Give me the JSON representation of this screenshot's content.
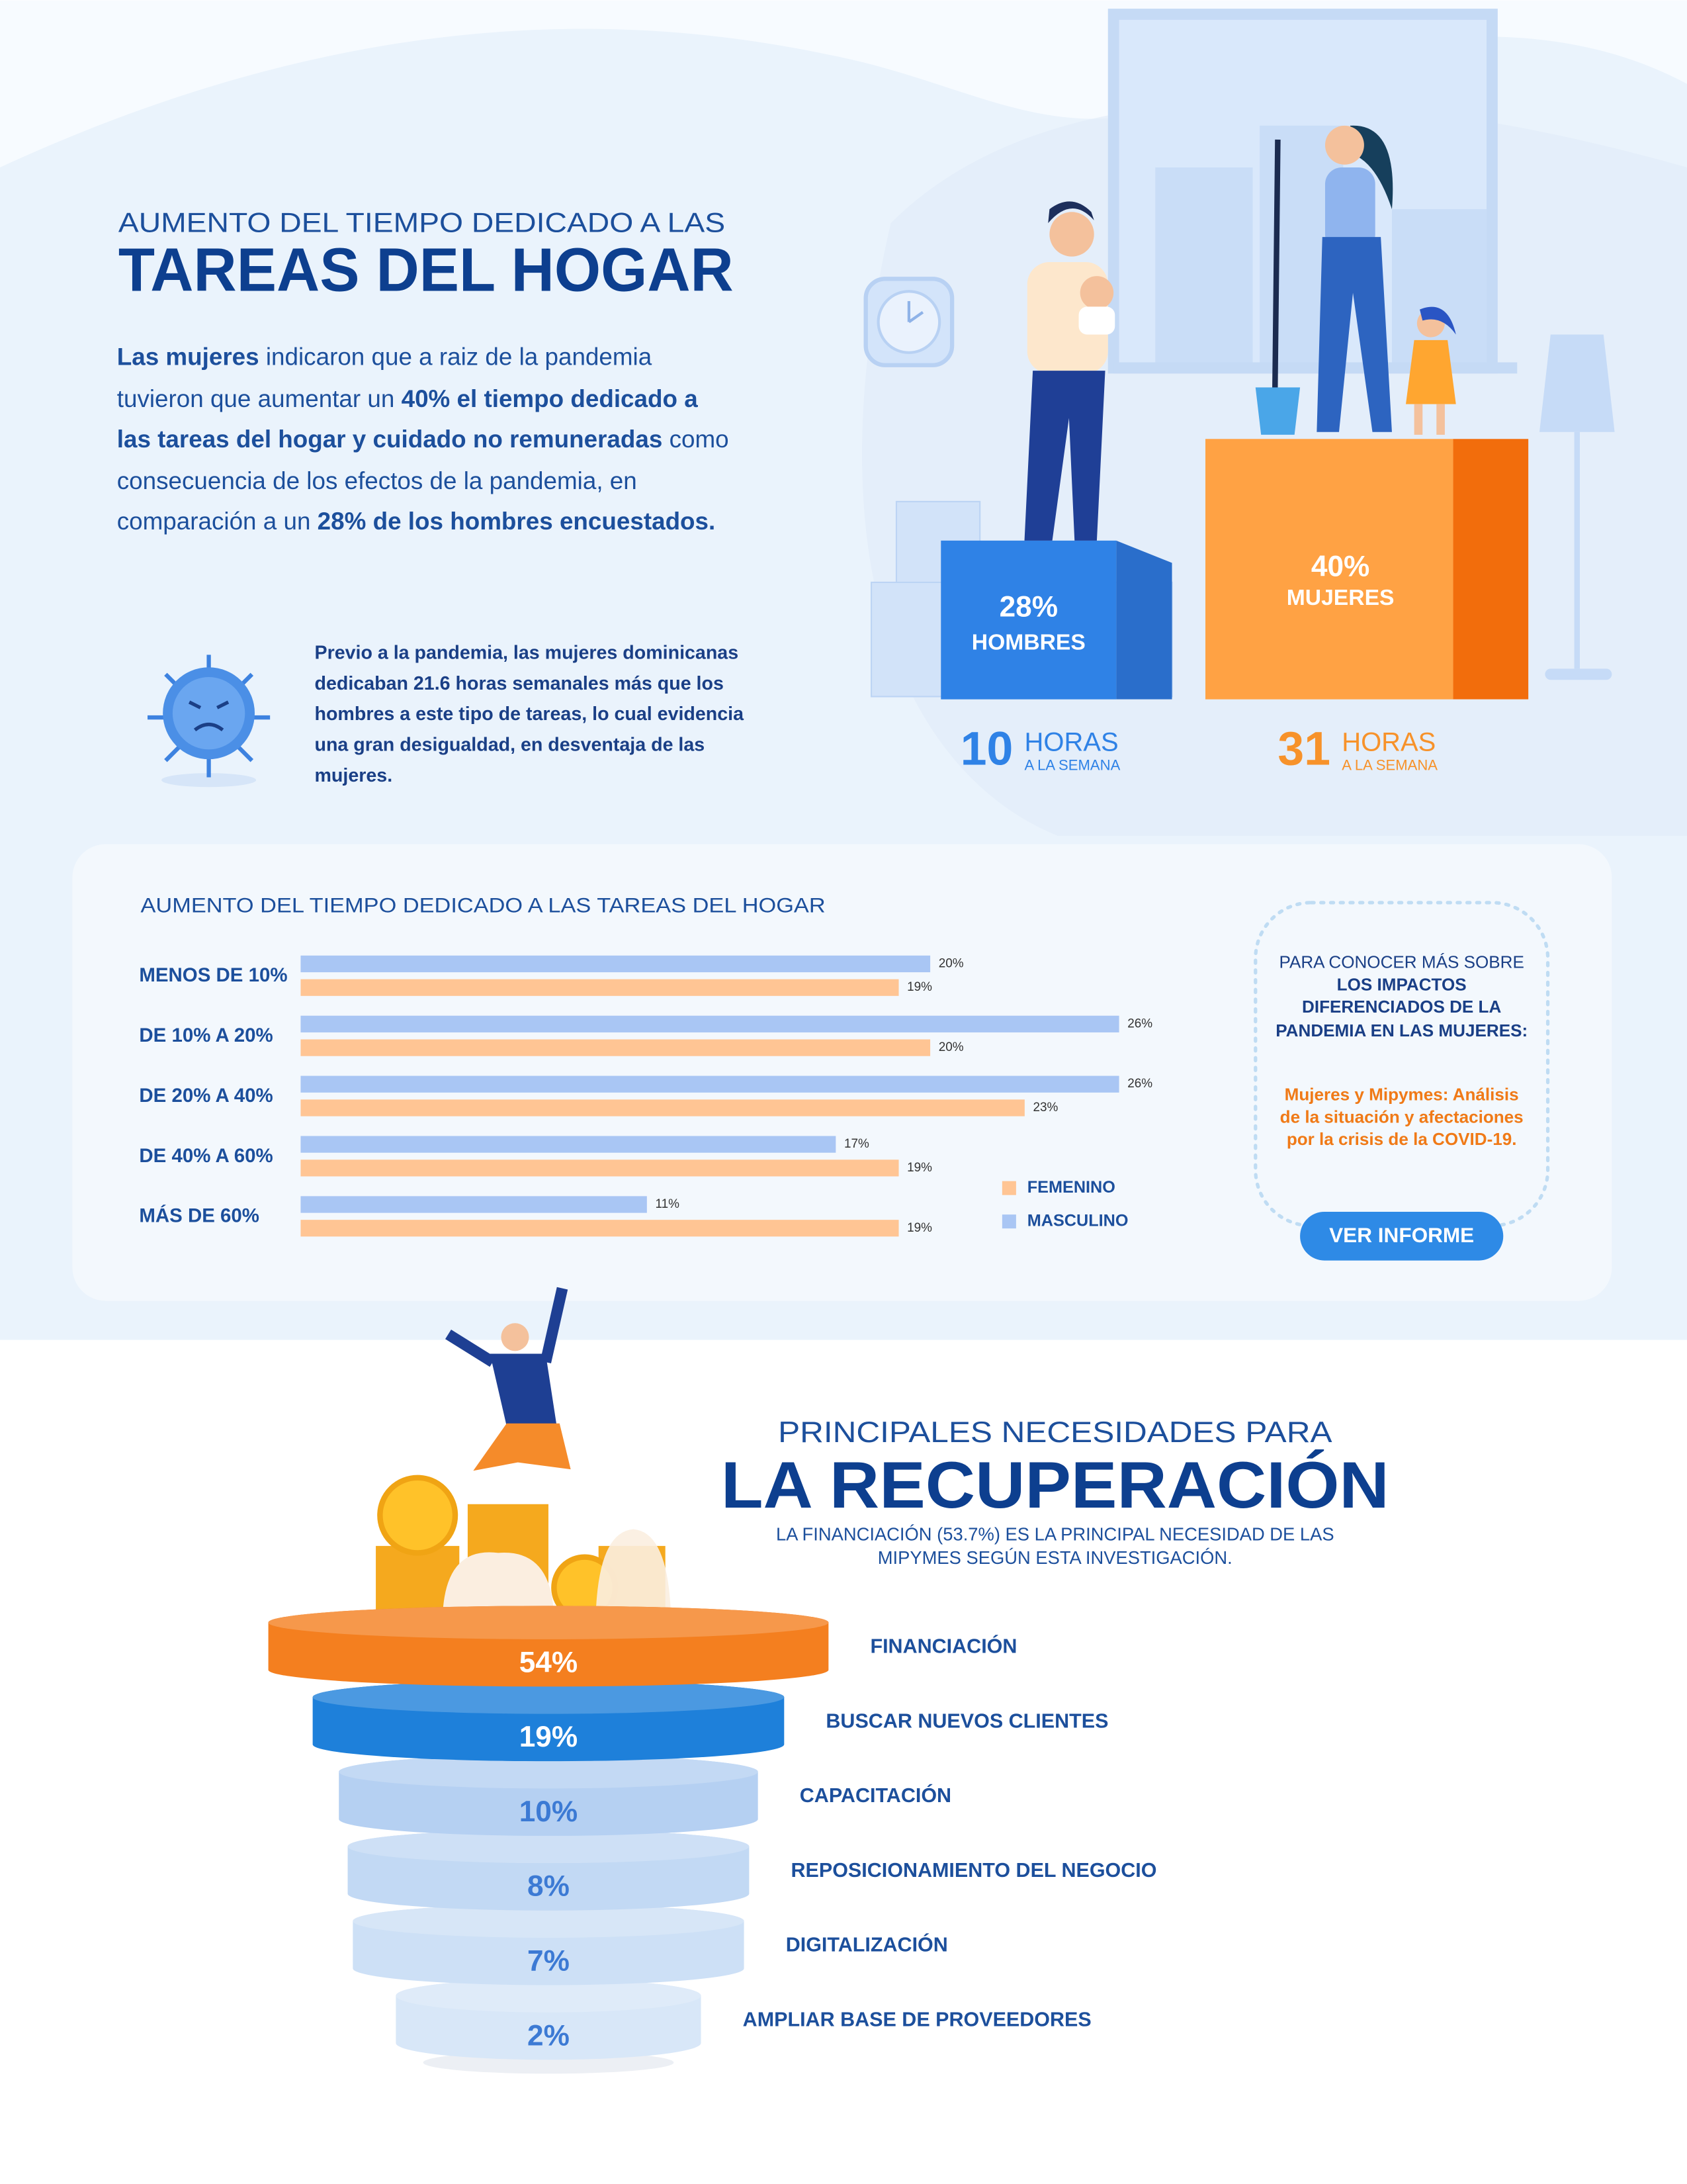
{
  "header": {
    "kicker": "AUMENTO DEL TIEMPO DEDICADO A LAS",
    "title": "TAREAS DEL HOGAR"
  },
  "intro": {
    "segments": [
      {
        "text": "Las mujeres",
        "bold": true
      },
      {
        "text": " indicaron que a raiz de la pandemia tuvieron que aumentar un ",
        "bold": false
      },
      {
        "text": "40% el tiempo dedicado a las tareas del hogar y cuidado no remuneradas",
        "bold": true
      },
      {
        "text": " como consecuencia de los efectos de la pandemia, en comparación a un ",
        "bold": false
      },
      {
        "text": "28% de los hombres encuestados.",
        "bold": true
      }
    ]
  },
  "note": "Previo a la pandemia, las mujeres dominicanas dedicaban 21.6 horas semanales más que los hombres a este tipo de tareas, lo cual evidencia una gran desigualdad, en desventaja de las mujeres.",
  "podium": [
    {
      "percent": "28%",
      "label": "HOMBRES",
      "hours": "10",
      "unit": "HORAS",
      "period": "A LA SEMANA",
      "color": "#2f82e6"
    },
    {
      "percent": "40%",
      "label": "MUJERES",
      "hours": "31",
      "unit": "HORAS",
      "period": "A LA SEMANA",
      "color": "#f7922a"
    }
  ],
  "chart_data": [
    {
      "type": "bar",
      "orientation": "horizontal",
      "title": "AUMENTO DEL TIEMPO DEDICADO A LAS TAREAS DEL HOGAR",
      "categories": [
        "MENOS DE 10%",
        "DE 10% A 20%",
        "DE 20% A 40%",
        "DE 40% A 60%",
        "MÁS DE 60%"
      ],
      "series": [
        {
          "name": "FEMENINO",
          "color": "#ffc594",
          "values": [
            19,
            20,
            23,
            19,
            19
          ],
          "value_labels": [
            "19%",
            "20%",
            "23%",
            "19%",
            "19%"
          ]
        },
        {
          "name": "MASCULINO",
          "color": "#a9c6f4",
          "values": [
            20,
            26,
            26,
            17,
            11
          ],
          "value_labels": [
            "20%",
            "26%",
            "26%",
            "17%",
            "11%"
          ]
        }
      ]
    },
    {
      "type": "funnel",
      "title": "PRINCIPALES NECESIDADES PARA",
      "title_emphasis": "LA RECUPERACIÓN",
      "subtitle": "LA FINANCIACIÓN (53.7%) ES LA PRINCIPAL NECESIDAD DE LAS MIPYMES SEGÚN ESTA INVESTIGACIÓN.",
      "categories": [
        "FINANCIACIÓN",
        "BUSCAR NUEVOS CLIENTES",
        "CAPACITACIÓN",
        "REPOSICIONAMIENTO DEL NEGOCIO",
        "DIGITALIZACIÓN",
        "AMPLIAR BASE DE PROVEEDORES"
      ],
      "values": [
        54,
        19,
        10,
        8,
        7,
        2
      ],
      "value_labels": [
        "54%",
        "19%",
        "10%",
        "8%",
        "7%",
        "2%"
      ],
      "colors": [
        "#f47f1f",
        "#1e80da",
        "#b5d0f2",
        "#c2d9f4",
        "#cde0f6",
        "#d8e7f8"
      ]
    }
  ],
  "cta": {
    "segments": [
      {
        "text": "PARA CONOCER MÁS SOBRE ",
        "bold": false
      },
      {
        "text": "LOS IMPACTOS DIFERENCIADOS DE LA PANDEMIA EN LAS MUJERES:",
        "bold": true
      }
    ],
    "link": "Mujeres y Mipymes: Análisis de la situación y afectaciones por la crisis de la COVID-19.",
    "button": "VER INFORME"
  }
}
